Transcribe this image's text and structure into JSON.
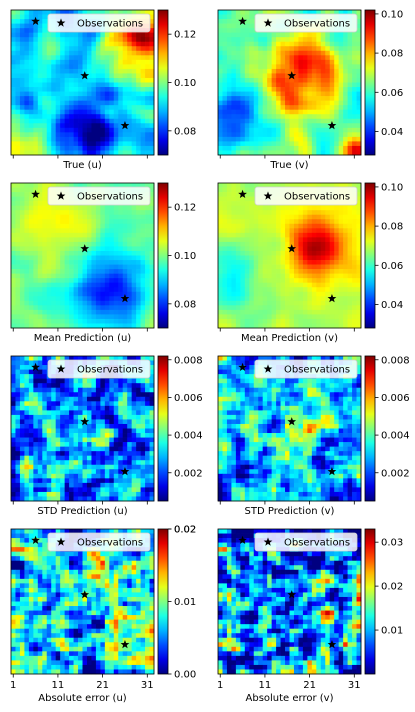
{
  "figure": {
    "legend_label": "Observations",
    "observation_marker": "star",
    "colormap": "jet"
  },
  "chart_data": [
    {
      "type": "heatmap",
      "xlabel": "True (u)",
      "colorbar_ticks": [
        "0.08",
        "0.10",
        "0.12"
      ],
      "colorbar_values": [
        0.08,
        0.1,
        0.12
      ],
      "clim": [
        0.07,
        0.13
      ],
      "observations": [
        [
          6,
          3
        ],
        [
          17,
          15
        ],
        [
          26,
          26
        ]
      ],
      "legend_position": "upper right",
      "show_xtick_labels": false
    },
    {
      "type": "heatmap",
      "xlabel": "True (v)",
      "colorbar_ticks": [
        "0.04",
        "0.06",
        "0.08",
        "0.10"
      ],
      "colorbar_values": [
        0.04,
        0.06,
        0.08,
        0.1
      ],
      "clim": [
        0.028,
        0.102
      ],
      "observations": [
        [
          6,
          3
        ],
        [
          17,
          15
        ],
        [
          26,
          26
        ]
      ],
      "legend_position": "upper right",
      "show_xtick_labels": false
    },
    {
      "type": "heatmap",
      "xlabel": "Mean Prediction (u)",
      "colorbar_ticks": [
        "0.08",
        "0.10",
        "0.12"
      ],
      "colorbar_values": [
        0.08,
        0.1,
        0.12
      ],
      "clim": [
        0.07,
        0.13
      ],
      "observations": [
        [
          6,
          3
        ],
        [
          17,
          15
        ],
        [
          26,
          26
        ]
      ],
      "legend_position": "upper right",
      "show_xtick_labels": false
    },
    {
      "type": "heatmap",
      "xlabel": "Mean Prediction (v)",
      "colorbar_ticks": [
        "0.04",
        "0.06",
        "0.08",
        "0.10"
      ],
      "colorbar_values": [
        0.04,
        0.06,
        0.08,
        0.1
      ],
      "clim": [
        0.028,
        0.102
      ],
      "observations": [
        [
          6,
          3
        ],
        [
          17,
          15
        ],
        [
          26,
          26
        ]
      ],
      "legend_position": "upper right",
      "show_xtick_labels": false
    },
    {
      "type": "heatmap",
      "xlabel": "STD Prediction (u)",
      "colorbar_ticks": [
        "0.002",
        "0.004",
        "0.006",
        "0.008"
      ],
      "colorbar_values": [
        0.002,
        0.004,
        0.006,
        0.008
      ],
      "clim": [
        0.0005,
        0.0082
      ],
      "observations": [
        [
          6,
          3
        ],
        [
          17,
          15
        ],
        [
          26,
          26
        ]
      ],
      "legend_position": "upper right",
      "show_xtick_labels": false
    },
    {
      "type": "heatmap",
      "xlabel": "STD Prediction (v)",
      "colorbar_ticks": [
        "0.002",
        "0.004",
        "0.006",
        "0.008"
      ],
      "colorbar_values": [
        0.002,
        0.004,
        0.006,
        0.008
      ],
      "clim": [
        0.0005,
        0.0082
      ],
      "observations": [
        [
          6,
          3
        ],
        [
          17,
          15
        ],
        [
          26,
          26
        ]
      ],
      "legend_position": "upper right",
      "show_xtick_labels": false
    },
    {
      "type": "heatmap",
      "xlabel": "Absolute error (u)",
      "colorbar_ticks": [
        "0.00",
        "0.01",
        "0.02",
        "0.02"
      ],
      "colorbar_values": [
        0.0,
        0.01,
        0.02,
        0.02
      ],
      "clim": [
        0.0,
        0.02
      ],
      "observations": [
        [
          6,
          3
        ],
        [
          17,
          15
        ],
        [
          26,
          26
        ]
      ],
      "legend_position": "upper right",
      "show_xtick_labels": true,
      "xticks": [
        "1",
        "11",
        "21",
        "31"
      ],
      "xtick_values": [
        1,
        11,
        21,
        31
      ]
    },
    {
      "type": "heatmap",
      "xlabel": "Absolute error (v)",
      "colorbar_ticks": [
        "0.01",
        "0.02",
        "0.03"
      ],
      "colorbar_values": [
        0.01,
        0.02,
        0.03
      ],
      "clim": [
        0.0,
        0.033
      ],
      "observations": [
        [
          6,
          3
        ],
        [
          17,
          15
        ],
        [
          26,
          26
        ]
      ],
      "legend_position": "upper right",
      "show_xtick_labels": true,
      "xticks": [
        "1",
        "11",
        "21",
        "31"
      ],
      "xtick_values": [
        1,
        11,
        21,
        31
      ]
    }
  ]
}
